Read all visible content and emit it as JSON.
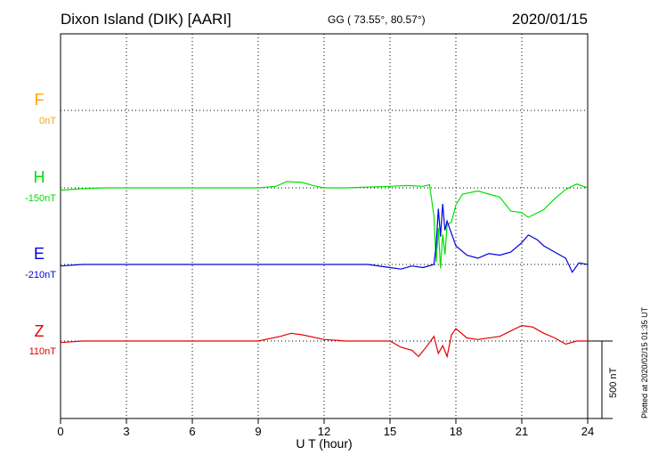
{
  "header": {
    "station": "Dixon Island (DIK)  [AARI]",
    "coords": "GG ( 73.55°,  80.57°)",
    "date": "2020/01/15"
  },
  "footer": {
    "plotted": "Plotted at 2020/02/15 01:35 UT"
  },
  "scale_bar": {
    "label": "500 nT",
    "value_nT": 500
  },
  "chart_data": {
    "type": "line",
    "title": "Dixon Island (DIK)  [AARI]",
    "xlabel": "U T (hour)",
    "ylabel": "",
    "xlim": [
      0,
      24
    ],
    "xticks": [
      0,
      3,
      6,
      9,
      12,
      15,
      18,
      21,
      24
    ],
    "grid": true,
    "series": [
      {
        "name": "F",
        "baseline_label": "0nT",
        "color": "#FFA500",
        "x": [],
        "values": []
      },
      {
        "name": "H",
        "baseline_label": "-150nT",
        "color": "#00E000",
        "x": [
          0,
          1,
          2,
          3,
          4,
          5,
          6,
          7,
          8,
          9,
          9.8,
          10.3,
          11,
          11.5,
          12,
          13,
          14,
          15,
          15.8,
          16.5,
          16.8,
          17.0,
          17.1,
          17.2,
          17.3,
          17.4,
          17.5,
          17.6,
          17.8,
          18.0,
          18.3,
          19,
          19.5,
          20,
          20.5,
          21,
          21.3,
          22,
          22.5,
          23,
          23.5,
          24
        ],
        "values": [
          -15,
          -5,
          0,
          0,
          0,
          0,
          0,
          0,
          0,
          0,
          10,
          40,
          35,
          15,
          0,
          0,
          5,
          10,
          15,
          10,
          20,
          -180,
          -480,
          -260,
          -520,
          -300,
          -430,
          -240,
          -220,
          -110,
          -40,
          -20,
          -40,
          -60,
          -150,
          -160,
          -190,
          -140,
          -70,
          -10,
          25,
          0
        ]
      },
      {
        "name": "E",
        "baseline_label": "-210nT",
        "color": "#0000E0",
        "x": [
          0,
          1,
          2,
          3,
          4,
          5,
          6,
          7,
          8,
          9,
          10,
          11,
          12,
          13,
          14,
          15,
          15.5,
          16,
          16.5,
          17.0,
          17.1,
          17.2,
          17.3,
          17.4,
          17.5,
          17.6,
          18,
          18.5,
          19,
          19.5,
          20,
          20.5,
          21,
          21.3,
          21.7,
          22,
          22.5,
          23,
          23.3,
          23.6,
          24
        ],
        "values": [
          -10,
          0,
          0,
          0,
          0,
          0,
          0,
          0,
          0,
          0,
          0,
          0,
          0,
          0,
          0,
          -20,
          -30,
          -10,
          -20,
          0,
          120,
          360,
          180,
          390,
          220,
          280,
          120,
          60,
          40,
          70,
          60,
          80,
          140,
          190,
          160,
          120,
          80,
          40,
          -50,
          10,
          0
        ]
      },
      {
        "name": "Z",
        "baseline_label": "110nT",
        "color": "#E00000",
        "x": [
          0,
          1,
          2,
          3,
          4,
          5,
          6,
          7,
          8,
          9,
          10,
          10.5,
          11,
          12,
          13,
          14,
          15,
          15.5,
          16,
          16.3,
          16.7,
          17.0,
          17.2,
          17.4,
          17.6,
          17.8,
          18,
          18.5,
          19,
          20,
          21,
          21.5,
          22,
          22.5,
          23,
          23.5,
          24
        ],
        "values": [
          -10,
          0,
          0,
          0,
          0,
          0,
          0,
          0,
          0,
          0,
          30,
          50,
          40,
          10,
          0,
          0,
          0,
          -40,
          -60,
          -100,
          -30,
          30,
          -80,
          -30,
          -100,
          40,
          80,
          20,
          10,
          30,
          100,
          90,
          50,
          20,
          -20,
          0,
          0
        ]
      }
    ]
  }
}
